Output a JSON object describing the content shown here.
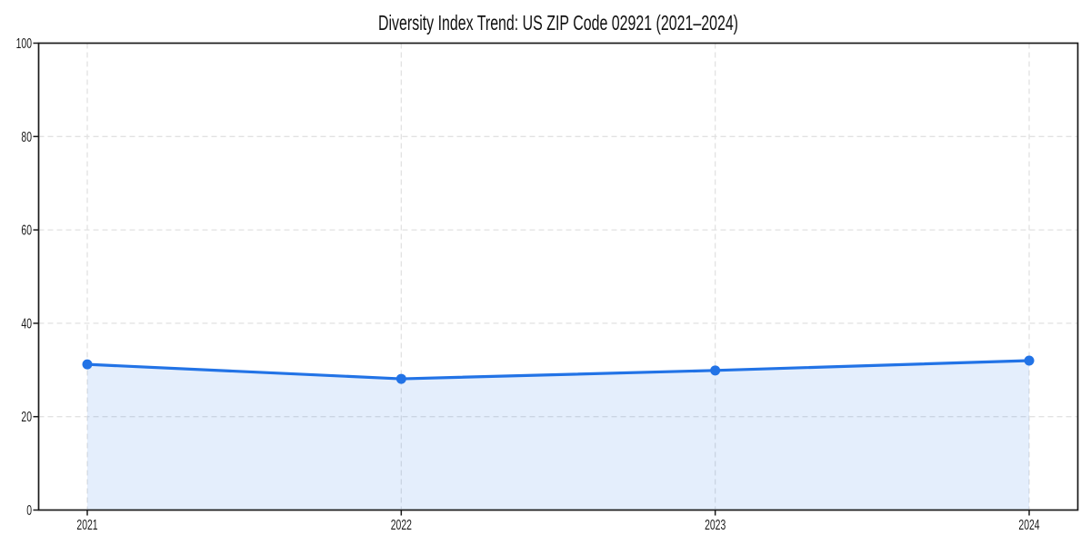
{
  "chart_data": {
    "type": "line",
    "title": "Diversity Index Trend: US ZIP Code 02921 (2021–2024)",
    "categories": [
      "2021",
      "2022",
      "2023",
      "2024"
    ],
    "series": [
      {
        "name": "Diversity Index",
        "values": [
          31.2,
          28.1,
          29.9,
          32.0
        ]
      }
    ],
    "xlabel": "",
    "ylabel": "",
    "ylim": [
      0,
      100
    ],
    "yticks": [
      0,
      20,
      40,
      60,
      80,
      100
    ],
    "area_fill": true,
    "marker": "circle",
    "grid": {
      "horizontal": true,
      "vertical": true,
      "style": "dashed"
    },
    "legend_position": "none",
    "colors": {
      "line": "#2273e6",
      "marker": "#2273e6",
      "fill": "rgba(34, 115, 230, 0.12)",
      "grid": "#e2e2e2",
      "axis": "#1a1a1a",
      "tick_text": "#1a1a1a",
      "background": "#ffffff"
    }
  }
}
